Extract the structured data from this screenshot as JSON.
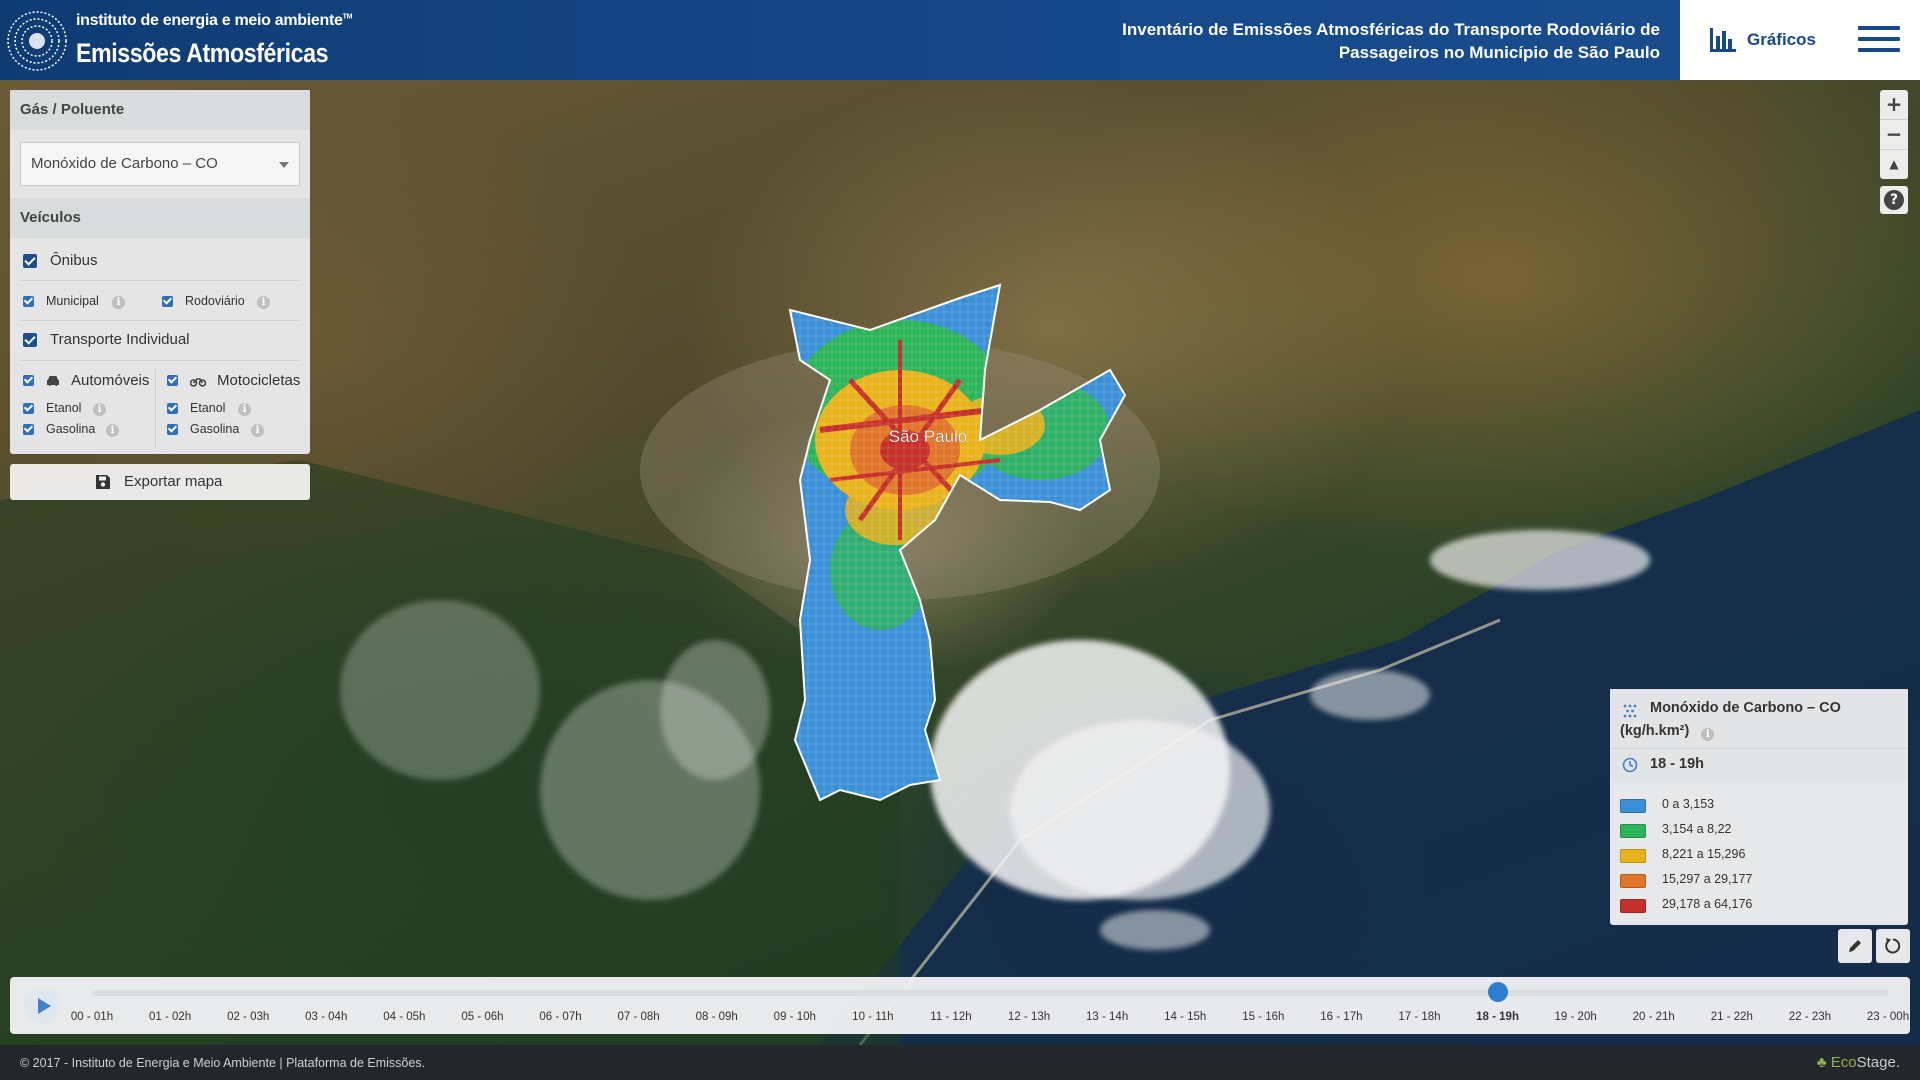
{
  "header": {
    "logo_small": "instituto de energia e meio ambiente",
    "logo_tm": "TM",
    "logo_big": "Emissões Atmosféricas",
    "title_line1": "Inventário de Emissões Atmosféricas do Transporte Rodoviário de",
    "title_line2": "Passageiros no Município de São Paulo",
    "graficos_label": "Gráficos",
    "graficos_icon": "bar-chart-icon",
    "menu_icon": "hamburger-icon"
  },
  "panel": {
    "gas_title": "Gás / Poluente",
    "gas_selected": "Monóxido de Carbono – CO",
    "vehicles_title": "Veículos",
    "onibus": "Ônibus",
    "municipal": "Municipal",
    "rodoviario": "Rodoviário",
    "transporte_individual": "Transporte Individual",
    "automoveis": "Automóveis",
    "motocicletas": "Motocicletas",
    "auto_etanol": "Etanol",
    "auto_gasolina": "Gasolina",
    "moto_etanol": "Etanol",
    "moto_gasolina": "Gasolina",
    "export_label": "Exportar mapa",
    "export_icon": "save-icon"
  },
  "map": {
    "city_label": "São Paulo",
    "zoom_in": "+",
    "zoom_out": "−",
    "compass": "▲",
    "help": "?"
  },
  "legend": {
    "title": "Monóxido de Carbono – CO",
    "unit": "(kg/h.km²)",
    "time": "18 - 19h",
    "classes": [
      {
        "label": "0 a 3,153",
        "color": "#3a8fd6"
      },
      {
        "label": "3,154 a 8,22",
        "color": "#2db35a"
      },
      {
        "label": "8,221 a 15,296",
        "color": "#e8b31c"
      },
      {
        "label": "15,297 a 29,177",
        "color": "#e0762a"
      },
      {
        "label": "29,178 a 64,176",
        "color": "#c6302a"
      }
    ]
  },
  "timeline": {
    "ticks": [
      "00 - 01h",
      "01 - 02h",
      "02 - 03h",
      "03 - 04h",
      "04 - 05h",
      "05 - 06h",
      "06 - 07h",
      "07 - 08h",
      "08 - 09h",
      "09 - 10h",
      "10 - 11h",
      "11 - 12h",
      "12 - 13h",
      "13 - 14h",
      "14 - 15h",
      "15 - 16h",
      "16 - 17h",
      "17 - 18h",
      "18 - 19h",
      "19 - 20h",
      "20 - 21h",
      "21 - 22h",
      "22 - 23h",
      "23 - 00h"
    ],
    "selected_index": 18
  },
  "footer": {
    "text": "© 2017 - Instituto de Energia e Meio Ambiente | Plataforma de Emissões.",
    "brand_prefix": "Eco",
    "brand_suffix": "Stage."
  }
}
